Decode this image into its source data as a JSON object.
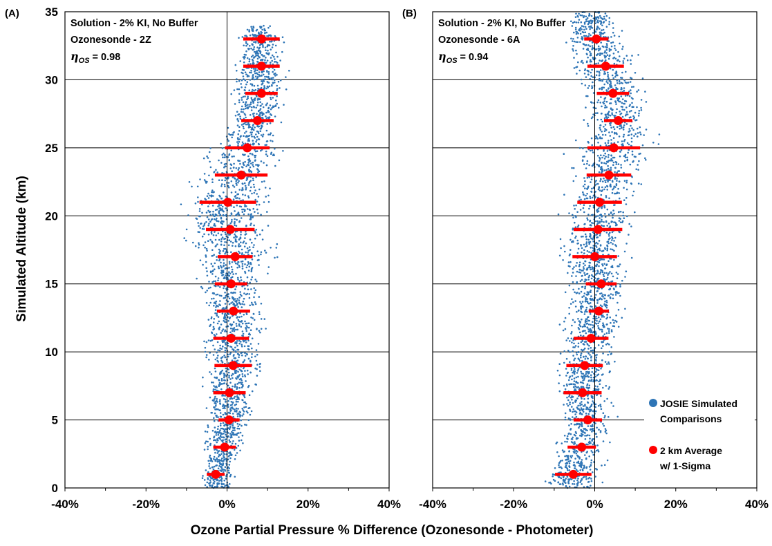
{
  "figure": {
    "ylabel": "Simulated Altitude (km)",
    "xlabel": "Ozone Partial Pressure % Difference (Ozonesonde - Photometer)"
  },
  "legend": {
    "scatter_line1": "JOSIE Simulated",
    "scatter_line2": "Comparisons",
    "avg_line1": "2 km Average",
    "avg_line2": "w/ 1-Sigma"
  },
  "colors": {
    "scatter": "#2e75b6",
    "average": "#ff0000",
    "gridline": "#000000"
  },
  "chart_data": [
    {
      "type": "scatter",
      "panel_label": "(A)",
      "annotation": {
        "line1": "Solution - 2% KI, No Buffer",
        "line2": "Ozonesonde - 2Z",
        "eta_prefix": "η",
        "eta_sub": "OS",
        "eta_value": "= 0.98"
      },
      "xlim": [
        -40,
        40
      ],
      "ylim": [
        0,
        35
      ],
      "x_ticks": [
        -40,
        -20,
        0,
        20,
        40
      ],
      "x_tick_labels": [
        "-40%",
        "-20%",
        "0%",
        "20%",
        "40%"
      ],
      "y_ticks": [
        0,
        5,
        10,
        15,
        20,
        25,
        30,
        35
      ],
      "y_tick_labels": [
        "0",
        "5",
        "10",
        "15",
        "20",
        "25",
        "30",
        "35"
      ],
      "grid": "horizontal",
      "series": [
        {
          "name": "JOSIE Simulated Comparisons",
          "envelope_alt": [
            0,
            1,
            3,
            5,
            7,
            9,
            11,
            13,
            15,
            16,
            17,
            18,
            19,
            21,
            23,
            25,
            26,
            27,
            29,
            31,
            33,
            34
          ],
          "envelope_center": [
            -2,
            -2.5,
            -1,
            0.5,
            0.5,
            1.5,
            1,
            1.5,
            0.5,
            1,
            1.5,
            1,
            0,
            0,
            2.5,
            4.5,
            6,
            7.5,
            8,
            8.5,
            8,
            8
          ],
          "envelope_halfwidth": [
            5,
            5.5,
            6,
            7,
            8.5,
            9,
            9.5,
            10,
            9.5,
            11,
            13,
            13,
            13,
            13,
            13,
            12,
            8,
            8,
            8,
            8.5,
            7.5,
            4
          ]
        },
        {
          "name": "2 km Average w/ 1-Sigma",
          "altitude": [
            1,
            3,
            5,
            7,
            9,
            11,
            13,
            15,
            17,
            19,
            21,
            23,
            25,
            27,
            29,
            31,
            33
          ],
          "mean": [
            -2.8,
            -0.6,
            0.5,
            0.6,
            1.5,
            1.0,
            1.6,
            1.0,
            2.0,
            0.8,
            0.2,
            3.5,
            5.0,
            7.5,
            8.5,
            8.5,
            8.5
          ],
          "sigma": [
            2.2,
            2.8,
            2.6,
            4.0,
            4.6,
            4.4,
            4.1,
            4.0,
            4.3,
            6.0,
            7.0,
            6.5,
            5.5,
            4.0,
            4.0,
            4.5,
            4.5
          ]
        }
      ]
    },
    {
      "type": "scatter",
      "panel_label": "(B)",
      "annotation": {
        "line1": "Solution - 2% KI, No Buffer",
        "line2": "Ozonesonde - 6A",
        "eta_prefix": "η",
        "eta_sub": "OS",
        "eta_value": "= 0.94"
      },
      "xlim": [
        -40,
        40
      ],
      "ylim": [
        0,
        35
      ],
      "x_ticks": [
        -40,
        -20,
        0,
        20,
        40
      ],
      "x_tick_labels": [
        "-40%",
        "-20%",
        "0%",
        "20%",
        "40%"
      ],
      "y_ticks": [
        0,
        5,
        10,
        15,
        20,
        25,
        30,
        35
      ],
      "y_tick_labels": [
        "0",
        "5",
        "10",
        "15",
        "20",
        "25",
        "30",
        "35"
      ],
      "grid": "horizontal",
      "series": [
        {
          "name": "JOSIE Simulated Comparisons",
          "envelope_alt": [
            0,
            1,
            3,
            5,
            7,
            9,
            11,
            13,
            15,
            17,
            19,
            21,
            23,
            25,
            27,
            29,
            31,
            33,
            35
          ],
          "envelope_center": [
            -5,
            -5.5,
            -3.5,
            -2,
            -3,
            -2.5,
            -1,
            0.5,
            1,
            -0.5,
            1,
            1,
            3.5,
            4.5,
            6,
            4.5,
            2.5,
            0,
            -1
          ],
          "envelope_halfwidth": [
            8,
            8.5,
            8.5,
            8,
            8.5,
            9,
            9,
            9,
            9,
            10,
            10.5,
            11,
            11.5,
            13,
            11,
            10,
            11,
            10,
            6
          ]
        },
        {
          "name": "2 km Average w/ 1-Sigma",
          "altitude": [
            1,
            3,
            5,
            7,
            9,
            11,
            13,
            15,
            17,
            19,
            21,
            23,
            25,
            27,
            29,
            31,
            33
          ],
          "mean": [
            -5.3,
            -3.2,
            -1.7,
            -3.0,
            -2.5,
            -0.9,
            1.0,
            1.6,
            0.0,
            0.8,
            1.2,
            3.5,
            4.7,
            5.8,
            4.5,
            2.7,
            0.4
          ],
          "sigma": [
            4.5,
            3.5,
            3.5,
            4.7,
            4.5,
            4.3,
            2.5,
            3.8,
            5.5,
            6.0,
            5.5,
            5.5,
            6.5,
            3.5,
            4.0,
            4.5,
            3.0
          ]
        }
      ]
    }
  ]
}
